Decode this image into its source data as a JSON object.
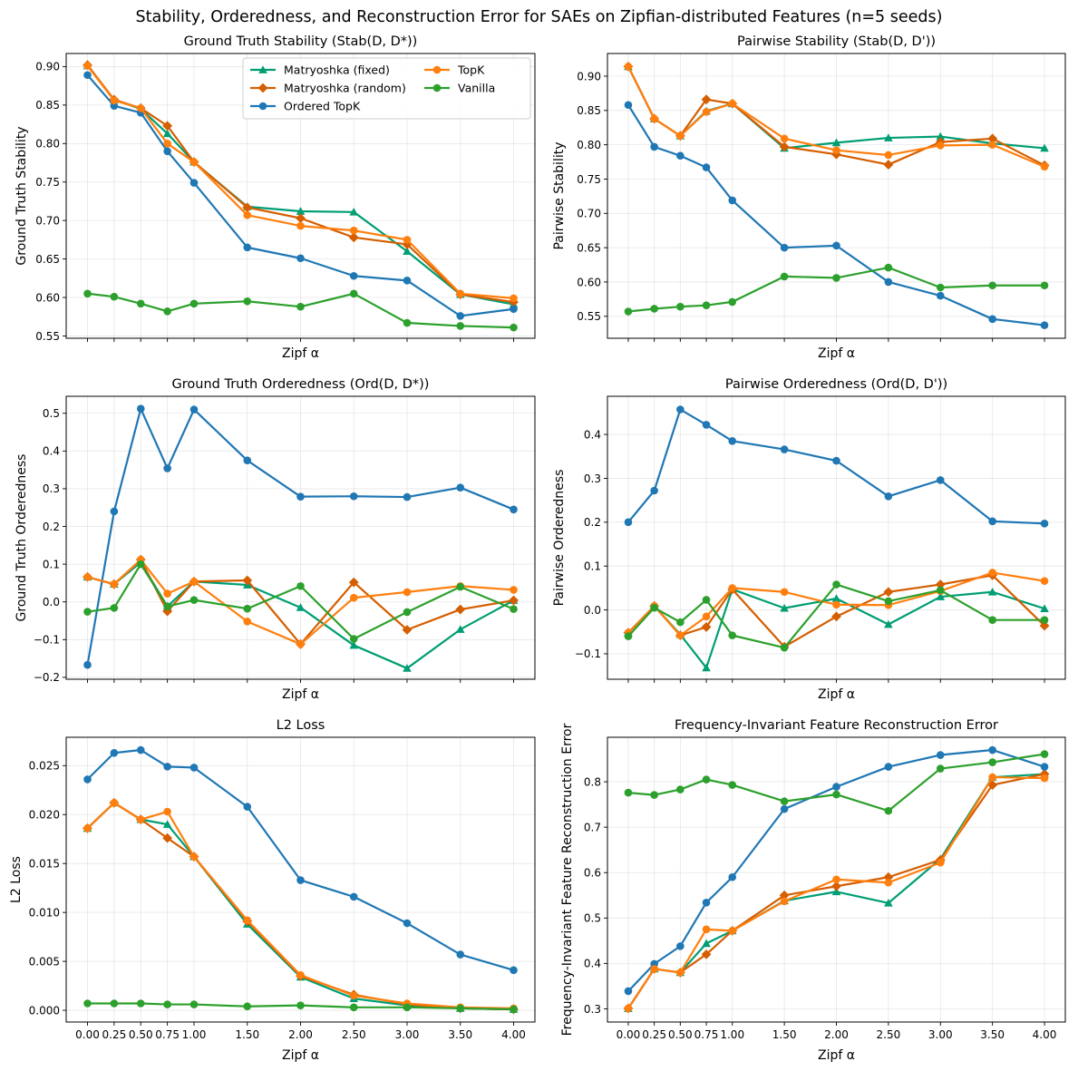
{
  "suptitle": "Stability, Orderedness, and Reconstruction Error for SAEs on Zipfian-distributed Features (n=5 seeds)",
  "colors": {
    "Matryoshka (fixed)": "#009e73",
    "Matryoshka (random)": "#d55e00",
    "Ordered TopK": "#1f77b4",
    "TopK": "#ff7f0e",
    "Vanilla": "#2ca02c"
  },
  "markers": {
    "Matryoshka (fixed)": "triangle",
    "Matryoshka (random)": "diamond",
    "Ordered TopK": "circle",
    "TopK": "circle",
    "Vanilla": "circle"
  },
  "legend": {
    "location": "top-right",
    "columns": 2,
    "entries": [
      "Matryoshka (fixed)",
      "Matryoshka (random)",
      "Ordered TopK",
      "TopK",
      "Vanilla"
    ]
  },
  "chart_data": [
    {
      "type": "line",
      "title": "Ground Truth Stability (Stab(D, D*))",
      "xlabel": "Zipf α",
      "ylabel": "Ground Truth Stability",
      "x": [
        0.0,
        0.25,
        0.5,
        0.75,
        1.0,
        1.5,
        2.0,
        2.5,
        3.0,
        3.5,
        4.0
      ],
      "xticks": [
        0.0,
        0.25,
        0.5,
        0.75,
        1.0,
        1.5,
        2.0,
        2.5,
        3.0,
        3.5,
        4.0
      ],
      "xticklabels": [
        "0.00",
        "0.25",
        "0.50",
        "0.75",
        "1.00",
        "1.50",
        "2.00",
        "2.50",
        "3.00",
        "3.50",
        "4.00"
      ],
      "show_xticklabels": false,
      "xlim": [
        -0.2,
        4.2
      ],
      "ylim": [
        0.547,
        0.917
      ],
      "yticks": [
        0.55,
        0.6,
        0.65,
        0.7,
        0.75,
        0.8,
        0.85,
        0.9
      ],
      "yticklabels": [
        "0.55",
        "0.60",
        "0.65",
        "0.70",
        "0.75",
        "0.80",
        "0.85",
        "0.90"
      ],
      "grid": true,
      "show_legend": true,
      "series": [
        {
          "name": "Matryoshka (fixed)",
          "values": [
            0.901,
            0.857,
            0.845,
            0.813,
            0.776,
            0.718,
            0.712,
            0.711,
            0.66,
            0.604,
            0.591
          ]
        },
        {
          "name": "Matryoshka (random)",
          "values": [
            0.902,
            0.857,
            0.846,
            0.823,
            0.776,
            0.717,
            0.703,
            0.678,
            0.669,
            0.604,
            0.594
          ]
        },
        {
          "name": "Ordered TopK",
          "values": [
            0.889,
            0.849,
            0.84,
            0.79,
            0.749,
            0.665,
            0.651,
            0.628,
            0.622,
            0.576,
            0.585
          ]
        },
        {
          "name": "TopK",
          "values": [
            0.901,
            0.856,
            0.846,
            0.8,
            0.776,
            0.707,
            0.693,
            0.687,
            0.675,
            0.605,
            0.599
          ]
        },
        {
          "name": "Vanilla",
          "values": [
            0.605,
            0.601,
            0.592,
            0.582,
            0.592,
            0.595,
            0.588,
            0.605,
            0.567,
            0.563,
            0.561
          ]
        }
      ]
    },
    {
      "type": "line",
      "title": "Pairwise Stability (Stab(D, D'))",
      "xlabel": "Zipf α",
      "ylabel": "Pairwise Stability",
      "x": [
        0.0,
        0.25,
        0.5,
        0.75,
        1.0,
        1.5,
        2.0,
        2.5,
        3.0,
        3.5,
        4.0
      ],
      "xticks": [
        0.0,
        0.25,
        0.5,
        0.75,
        1.0,
        1.5,
        2.0,
        2.5,
        3.0,
        3.5,
        4.0
      ],
      "xticklabels": [
        "0.00",
        "0.25",
        "0.50",
        "0.75",
        "1.00",
        "1.50",
        "2.00",
        "2.50",
        "3.00",
        "3.50",
        "4.00"
      ],
      "show_xticklabels": false,
      "xlim": [
        -0.2,
        4.2
      ],
      "ylim": [
        0.518,
        0.933
      ],
      "yticks": [
        0.55,
        0.6,
        0.65,
        0.7,
        0.75,
        0.8,
        0.85,
        0.9
      ],
      "yticklabels": [
        "0.55",
        "0.60",
        "0.65",
        "0.70",
        "0.75",
        "0.80",
        "0.85",
        "0.90"
      ],
      "grid": true,
      "show_legend": false,
      "series": [
        {
          "name": "Matryoshka (fixed)",
          "values": [
            0.914,
            0.838,
            0.813,
            0.849,
            0.86,
            0.795,
            0.803,
            0.81,
            0.812,
            0.802,
            0.795
          ]
        },
        {
          "name": "Matryoshka (random)",
          "values": [
            0.914,
            0.838,
            0.813,
            0.866,
            0.86,
            0.797,
            0.786,
            0.771,
            0.804,
            0.809,
            0.77
          ]
        },
        {
          "name": "Ordered TopK",
          "values": [
            0.858,
            0.797,
            0.784,
            0.767,
            0.719,
            0.65,
            0.653,
            0.6,
            0.58,
            0.546,
            0.537
          ]
        },
        {
          "name": "TopK",
          "values": [
            0.914,
            0.838,
            0.813,
            0.848,
            0.86,
            0.809,
            0.792,
            0.785,
            0.799,
            0.8,
            0.768
          ]
        },
        {
          "name": "Vanilla",
          "values": [
            0.557,
            0.561,
            0.564,
            0.566,
            0.571,
            0.608,
            0.606,
            0.621,
            0.592,
            0.595,
            0.595
          ]
        }
      ]
    },
    {
      "type": "line",
      "title": "Ground Truth Orderedness (Ord(D, D*))",
      "xlabel": "Zipf α",
      "ylabel": "Ground Truth Orderedness",
      "x": [
        0.0,
        0.25,
        0.5,
        0.75,
        1.0,
        1.5,
        2.0,
        2.5,
        3.0,
        3.5,
        4.0
      ],
      "xticks": [
        0.0,
        0.25,
        0.5,
        0.75,
        1.0,
        1.5,
        2.0,
        2.5,
        3.0,
        3.5,
        4.0
      ],
      "xticklabels": [
        "0.00",
        "0.25",
        "0.50",
        "0.75",
        "1.00",
        "1.50",
        "2.00",
        "2.50",
        "3.00",
        "3.50",
        "4.00"
      ],
      "show_xticklabels": false,
      "xlim": [
        -0.2,
        4.2
      ],
      "ylim": [
        -0.205,
        0.545
      ],
      "yticks": [
        -0.2,
        -0.1,
        0.0,
        0.1,
        0.2,
        0.3,
        0.4,
        0.5
      ],
      "yticklabels": [
        "−0.2",
        "−0.1",
        "0.0",
        "0.1",
        "0.2",
        "0.3",
        "0.4",
        "0.5"
      ],
      "grid": true,
      "show_legend": false,
      "series": [
        {
          "name": "Matryoshka (fixed)",
          "values": [
            0.066,
            0.047,
            0.105,
            -0.012,
            0.054,
            0.045,
            -0.015,
            -0.115,
            -0.176,
            -0.073,
            0.004
          ]
        },
        {
          "name": "Matryoshka (random)",
          "values": [
            0.066,
            0.047,
            0.112,
            -0.025,
            0.054,
            0.057,
            -0.112,
            0.052,
            -0.074,
            -0.02,
            0.004
          ]
        },
        {
          "name": "Ordered TopK",
          "values": [
            -0.167,
            0.24,
            0.512,
            0.354,
            0.51,
            0.375,
            0.279,
            0.28,
            0.278,
            0.303,
            0.245
          ]
        },
        {
          "name": "TopK",
          "values": [
            0.066,
            0.047,
            0.112,
            0.022,
            0.054,
            -0.052,
            -0.112,
            0.011,
            0.026,
            0.042,
            0.032
          ]
        },
        {
          "name": "Vanilla",
          "values": [
            -0.026,
            -0.016,
            0.1,
            -0.012,
            0.005,
            -0.018,
            0.042,
            -0.098,
            -0.027,
            0.04,
            -0.019
          ]
        }
      ]
    },
    {
      "type": "line",
      "title": "Pairwise Orderedness (Ord(D, D'))",
      "xlabel": "Zipf α",
      "ylabel": "Pairwise Orderedness",
      "x": [
        0.0,
        0.25,
        0.5,
        0.75,
        1.0,
        1.5,
        2.0,
        2.5,
        3.0,
        3.5,
        4.0
      ],
      "xticks": [
        0.0,
        0.25,
        0.5,
        0.75,
        1.0,
        1.5,
        2.0,
        2.5,
        3.0,
        3.5,
        4.0
      ],
      "xticklabels": [
        "0.00",
        "0.25",
        "0.50",
        "0.75",
        "1.00",
        "1.50",
        "2.00",
        "2.50",
        "3.00",
        "3.50",
        "4.00"
      ],
      "show_xticklabels": false,
      "xlim": [
        -0.2,
        4.2
      ],
      "ylim": [
        -0.158,
        0.487
      ],
      "yticks": [
        -0.1,
        0.0,
        0.1,
        0.2,
        0.3,
        0.4
      ],
      "yticklabels": [
        "−0.1",
        "0.0",
        "0.1",
        "0.2",
        "0.3",
        "0.4"
      ],
      "grid": true,
      "show_legend": false,
      "series": [
        {
          "name": "Matryoshka (fixed)",
          "values": [
            -0.052,
            0.009,
            -0.056,
            -0.132,
            0.047,
            0.004,
            0.026,
            -0.033,
            0.03,
            0.041,
            0.003
          ]
        },
        {
          "name": "Matryoshka (random)",
          "values": [
            -0.052,
            0.009,
            -0.058,
            -0.039,
            0.047,
            -0.084,
            -0.015,
            0.041,
            0.058,
            0.079,
            -0.036
          ]
        },
        {
          "name": "Ordered TopK",
          "values": [
            0.2,
            0.272,
            0.457,
            0.422,
            0.385,
            0.366,
            0.34,
            0.259,
            0.296,
            0.202,
            0.197
          ]
        },
        {
          "name": "TopK",
          "values": [
            -0.052,
            0.009,
            -0.058,
            -0.015,
            0.05,
            0.041,
            0.012,
            0.011,
            0.043,
            0.085,
            0.066
          ]
        },
        {
          "name": "Vanilla",
          "values": [
            -0.06,
            0.005,
            -0.028,
            0.023,
            -0.058,
            -0.086,
            0.058,
            0.02,
            0.045,
            -0.023,
            -0.023
          ]
        }
      ]
    },
    {
      "type": "line",
      "title": "L2 Loss",
      "xlabel": "Zipf α",
      "ylabel": "L2 Loss",
      "x": [
        0.0,
        0.25,
        0.5,
        0.75,
        1.0,
        1.5,
        2.0,
        2.5,
        3.0,
        3.5,
        4.0
      ],
      "xticks": [
        0.0,
        0.25,
        0.5,
        0.75,
        1.0,
        1.5,
        2.0,
        2.5,
        3.0,
        3.5,
        4.0
      ],
      "xticklabels": [
        "0.00",
        "0.25",
        "0.50",
        "0.75",
        "1.00",
        "1.50",
        "2.00",
        "2.50",
        "3.00",
        "3.50",
        "4.00"
      ],
      "show_xticklabels": true,
      "xlim": [
        -0.2,
        4.2
      ],
      "ylim": [
        -0.0012,
        0.0279
      ],
      "yticks": [
        0.0,
        0.005,
        0.01,
        0.015,
        0.02,
        0.025
      ],
      "yticklabels": [
        "0.000",
        "0.005",
        "0.010",
        "0.015",
        "0.020",
        "0.025"
      ],
      "grid": true,
      "show_legend": false,
      "series": [
        {
          "name": "Matryoshka (fixed)",
          "values": [
            0.0186,
            0.0212,
            0.0195,
            0.019,
            0.0157,
            0.0088,
            0.0034,
            0.0012,
            0.0005,
            0.0002,
            0.0001
          ]
        },
        {
          "name": "Matryoshka (random)",
          "values": [
            0.0186,
            0.0212,
            0.0195,
            0.0176,
            0.0157,
            0.0091,
            0.0035,
            0.0016,
            0.0006,
            0.0002,
            0.0001
          ]
        },
        {
          "name": "Ordered TopK",
          "values": [
            0.0236,
            0.0263,
            0.0266,
            0.0249,
            0.0248,
            0.0208,
            0.0133,
            0.0116,
            0.0089,
            0.0057,
            0.0041
          ]
        },
        {
          "name": "TopK",
          "values": [
            0.0186,
            0.0212,
            0.0195,
            0.0203,
            0.0157,
            0.0092,
            0.0036,
            0.0015,
            0.0007,
            0.0003,
            0.0002
          ]
        },
        {
          "name": "Vanilla",
          "values": [
            0.0007,
            0.0007,
            0.0007,
            0.0006,
            0.0006,
            0.0004,
            0.0005,
            0.0003,
            0.0003,
            0.0002,
            0.0001
          ]
        }
      ]
    },
    {
      "type": "line",
      "title": "Frequency-Invariant Feature Reconstruction Error",
      "xlabel": "Zipf α",
      "ylabel": "Frequency-Invariant Feature Reconstruction Error",
      "x": [
        0.0,
        0.25,
        0.5,
        0.75,
        1.0,
        1.5,
        2.0,
        2.5,
        3.0,
        3.5,
        4.0
      ],
      "xticks": [
        0.0,
        0.25,
        0.5,
        0.75,
        1.0,
        1.5,
        2.0,
        2.5,
        3.0,
        3.5,
        4.0
      ],
      "xticklabels": [
        "0.00",
        "0.25",
        "0.50",
        "0.75",
        "1.00",
        "1.50",
        "2.00",
        "2.50",
        "3.00",
        "3.50",
        "4.00"
      ],
      "show_xticklabels": true,
      "xlim": [
        -0.2,
        4.2
      ],
      "ylim": [
        0.271,
        0.898
      ],
      "yticks": [
        0.3,
        0.4,
        0.5,
        0.6,
        0.7,
        0.8
      ],
      "yticklabels": [
        "0.3",
        "0.4",
        "0.5",
        "0.6",
        "0.7",
        "0.8"
      ],
      "grid": true,
      "show_legend": false,
      "series": [
        {
          "name": "Matryoshka (fixed)",
          "values": [
            0.301,
            0.388,
            0.38,
            0.444,
            0.472,
            0.538,
            0.558,
            0.533,
            0.63,
            0.81,
            0.817
          ]
        },
        {
          "name": "Matryoshka (random)",
          "values": [
            0.301,
            0.388,
            0.38,
            0.42,
            0.472,
            0.55,
            0.57,
            0.59,
            0.628,
            0.793,
            0.817
          ]
        },
        {
          "name": "Ordered TopK",
          "values": [
            0.339,
            0.399,
            0.438,
            0.534,
            0.59,
            0.74,
            0.789,
            0.833,
            0.859,
            0.87,
            0.833
          ]
        },
        {
          "name": "TopK",
          "values": [
            0.301,
            0.388,
            0.38,
            0.475,
            0.472,
            0.537,
            0.585,
            0.578,
            0.622,
            0.81,
            0.808
          ]
        },
        {
          "name": "Vanilla",
          "values": [
            0.776,
            0.771,
            0.783,
            0.805,
            0.793,
            0.757,
            0.772,
            0.736,
            0.829,
            0.843,
            0.861
          ]
        }
      ]
    }
  ]
}
